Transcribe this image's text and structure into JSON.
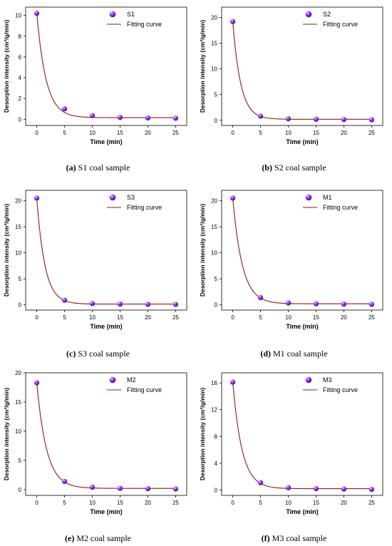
{
  "colors": {
    "marker": "#9b30ff",
    "curve": "#8b1a1a",
    "axis": "#000000"
  },
  "chart_data": [
    {
      "type": "scatter",
      "panel_label": "(a)",
      "caption": "S1 coal sample",
      "xlabel": "Time (min)",
      "ylabel": "Desorption intensity (cm³/g/min)",
      "xlim": [
        -2,
        27
      ],
      "ylim": [
        -0.6,
        10.8
      ],
      "xticks": [
        0,
        5,
        10,
        15,
        20,
        25
      ],
      "yticks": [
        0,
        2,
        4,
        6,
        8,
        10
      ],
      "legend": [
        "S1",
        "Fitting curve"
      ],
      "series": [
        {
          "name": "S1",
          "x": [
            0,
            5,
            10,
            15,
            20,
            25
          ],
          "y": [
            10.2,
            1.0,
            0.35,
            0.18,
            0.12,
            0.1
          ]
        },
        {
          "name": "Fitting curve",
          "fit": {
            "a": 10.1,
            "k": 0.6,
            "c": 0.15
          }
        }
      ]
    },
    {
      "type": "scatter",
      "panel_label": "(b)",
      "caption": "S2 coal sample",
      "xlabel": "Time (min)",
      "ylabel": "Desorption intensity (cm³/g/min)",
      "xlim": [
        -2,
        27
      ],
      "ylim": [
        -1,
        22
      ],
      "xticks": [
        0,
        5,
        10,
        15,
        20,
        25
      ],
      "yticks": [
        0,
        5,
        10,
        15,
        20
      ],
      "legend": [
        "S2",
        "Fitting curve"
      ],
      "series": [
        {
          "name": "S2",
          "x": [
            0,
            5,
            10,
            15,
            20,
            25
          ],
          "y": [
            19.2,
            0.8,
            0.3,
            0.2,
            0.15,
            0.1
          ]
        },
        {
          "name": "Fitting curve",
          "fit": {
            "a": 19.0,
            "k": 0.7,
            "c": 0.2
          }
        }
      ]
    },
    {
      "type": "scatter",
      "panel_label": "(c)",
      "caption": "S3 coal sample",
      "xlabel": "Time (min)",
      "ylabel": "Desorption intensity (cm³/g/min)",
      "xlim": [
        -2,
        27
      ],
      "ylim": [
        -1,
        22
      ],
      "xticks": [
        0,
        5,
        10,
        15,
        20,
        25
      ],
      "yticks": [
        0,
        5,
        10,
        15,
        20
      ],
      "legend": [
        "S3",
        "Fitting curve"
      ],
      "series": [
        {
          "name": "S3",
          "x": [
            0,
            5,
            10,
            15,
            20,
            25
          ],
          "y": [
            20.5,
            0.9,
            0.25,
            0.15,
            0.1,
            0.1
          ]
        },
        {
          "name": "Fitting curve",
          "fit": {
            "a": 20.3,
            "k": 0.68,
            "c": 0.15
          }
        }
      ]
    },
    {
      "type": "scatter",
      "panel_label": "(d)",
      "caption": "M1 coal sample",
      "xlabel": "Time (min)",
      "ylabel": "Desorption intensity (cm³/g/min)",
      "xlim": [
        -2,
        27
      ],
      "ylim": [
        -1,
        22
      ],
      "xticks": [
        0,
        5,
        10,
        15,
        20,
        25
      ],
      "yticks": [
        0,
        5,
        10,
        15,
        20
      ],
      "legend": [
        "M1",
        "Fitting curve"
      ],
      "series": [
        {
          "name": "M1",
          "x": [
            0,
            5,
            10,
            15,
            20,
            25
          ],
          "y": [
            20.5,
            1.4,
            0.35,
            0.2,
            0.15,
            0.1
          ]
        },
        {
          "name": "Fitting curve",
          "fit": {
            "a": 20.3,
            "k": 0.58,
            "c": 0.2
          }
        }
      ]
    },
    {
      "type": "scatter",
      "panel_label": "(e)",
      "caption": "M2 coal sample",
      "xlabel": "Time (min)",
      "ylabel": "Desorption intensity (cm³/g/min)",
      "xlim": [
        -2,
        27
      ],
      "ylim": [
        -1,
        20
      ],
      "xticks": [
        0,
        5,
        10,
        15,
        20,
        25
      ],
      "yticks": [
        0,
        5,
        10,
        15,
        20
      ],
      "legend": [
        "M2",
        "Fitting curve"
      ],
      "series": [
        {
          "name": "M2",
          "x": [
            0,
            5,
            10,
            15,
            20,
            25
          ],
          "y": [
            18.3,
            1.4,
            0.4,
            0.2,
            0.15,
            0.1
          ]
        },
        {
          "name": "Fitting curve",
          "fit": {
            "a": 18.1,
            "k": 0.56,
            "c": 0.2
          }
        }
      ]
    },
    {
      "type": "scatter",
      "panel_label": "(f)",
      "caption": "M3 coal sample",
      "xlabel": "Time (min)",
      "ylabel": "Desorption intensity (cm³/g/min)",
      "xlim": [
        -2,
        27
      ],
      "ylim": [
        -0.8,
        17.5
      ],
      "xticks": [
        0,
        5,
        10,
        15,
        20,
        25
      ],
      "yticks": [
        0,
        4,
        8,
        12,
        16
      ],
      "legend": [
        "M3",
        "Fitting curve"
      ],
      "series": [
        {
          "name": "M3",
          "x": [
            0,
            5,
            10,
            15,
            20,
            25
          ],
          "y": [
            16.1,
            1.1,
            0.35,
            0.2,
            0.15,
            0.1
          ]
        },
        {
          "name": "Fitting curve",
          "fit": {
            "a": 15.9,
            "k": 0.6,
            "c": 0.2
          }
        }
      ]
    }
  ]
}
